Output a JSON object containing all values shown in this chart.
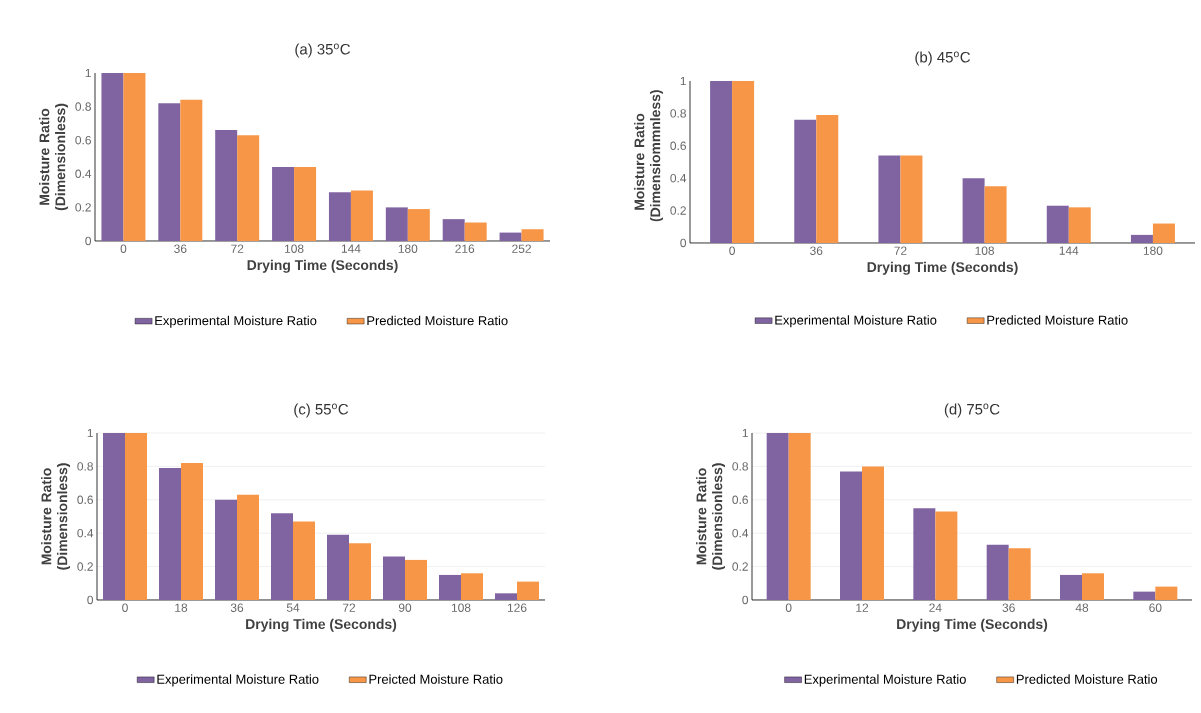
{
  "chart_data": [
    {
      "type": "bar",
      "title": "(a) 35$^{o}$C",
      "xlabel": "Drying Time (Seconds)",
      "ylabel": "Moisture Ratio (Dimensionless)",
      "categories": [
        "0",
        "36",
        "72",
        "108",
        "144",
        "180",
        "216",
        "252"
      ],
      "series": [
        {
          "name": "Experimental Moisture Ratio",
          "color": "#8064a2",
          "values": [
            1,
            0.82,
            0.66,
            0.44,
            0.29,
            0.2,
            0.13,
            0.05
          ]
        },
        {
          "name": "Predicted Moisture Ratio",
          "color": "#f79646",
          "values": [
            1,
            0.84,
            0.63,
            0.44,
            0.3,
            0.19,
            0.11,
            0.07
          ]
        }
      ],
      "ylim": [
        0,
        1
      ],
      "yticks": [
        0,
        0.2,
        0.4,
        0.6,
        0.8,
        1
      ],
      "grid": false,
      "legend": "bottom"
    },
    {
      "type": "bar",
      "title": "(b) 45$^{o}$C",
      "xlabel": "Drying Time (Seconds)",
      "ylabel": "Moisture Ratio (Dimensiommnless)",
      "categories": [
        "0",
        "36",
        "72",
        "108",
        "144",
        "180"
      ],
      "series": [
        {
          "name": "Experimental Moisture Ratio",
          "color": "#8064a2",
          "values": [
            1,
            0.76,
            0.54,
            0.4,
            0.23,
            0.05
          ]
        },
        {
          "name": "Predicted Moisture Ratio",
          "color": "#f79646",
          "values": [
            1,
            0.79,
            0.54,
            0.35,
            0.22,
            0.12
          ]
        }
      ],
      "ylim": [
        0,
        1
      ],
      "yticks": [
        0,
        0.2,
        0.4,
        0.6,
        0.8,
        1
      ],
      "grid": false,
      "legend": "bottom"
    },
    {
      "type": "bar",
      "title": "(c) 55$^{o}$C",
      "xlabel": "Drying Time (Seconds)",
      "ylabel": "Moisture Ratio (Dimensionless)",
      "categories": [
        "0",
        "18",
        "36",
        "54",
        "72",
        "90",
        "108",
        "126"
      ],
      "series": [
        {
          "name": "Experimental Moisture Ratio",
          "color": "#8064a2",
          "values": [
            1,
            0.79,
            0.6,
            0.52,
            0.39,
            0.26,
            0.15,
            0.04
          ]
        },
        {
          "name": "Preicted Moisture Ratio",
          "color": "#f79646",
          "values": [
            1,
            0.82,
            0.63,
            0.47,
            0.34,
            0.24,
            0.16,
            0.11
          ]
        }
      ],
      "ylim": [
        0,
        1
      ],
      "yticks": [
        0,
        0.2,
        0.4,
        0.6,
        0.8,
        1
      ],
      "grid": "y",
      "legend": "bottom"
    },
    {
      "type": "bar",
      "title": "(d) 75$^{o}$C",
      "xlabel": "Drying Time (Seconds)",
      "ylabel": "Moisture Ratio (Dimensionless)",
      "categories": [
        "0",
        "12",
        "24",
        "36",
        "48",
        "60"
      ],
      "series": [
        {
          "name": "Experimental Moisture Ratio",
          "color": "#8064a2",
          "values": [
            1,
            0.77,
            0.55,
            0.33,
            0.15,
            0.05
          ]
        },
        {
          "name": "Predicted Moisture Ratio",
          "color": "#f79646",
          "values": [
            1,
            0.8,
            0.53,
            0.31,
            0.16,
            0.08
          ]
        }
      ],
      "ylim": [
        0,
        1
      ],
      "yticks": [
        0,
        0.2,
        0.4,
        0.6,
        0.8,
        1
      ],
      "grid": "y",
      "legend": "bottom"
    }
  ]
}
